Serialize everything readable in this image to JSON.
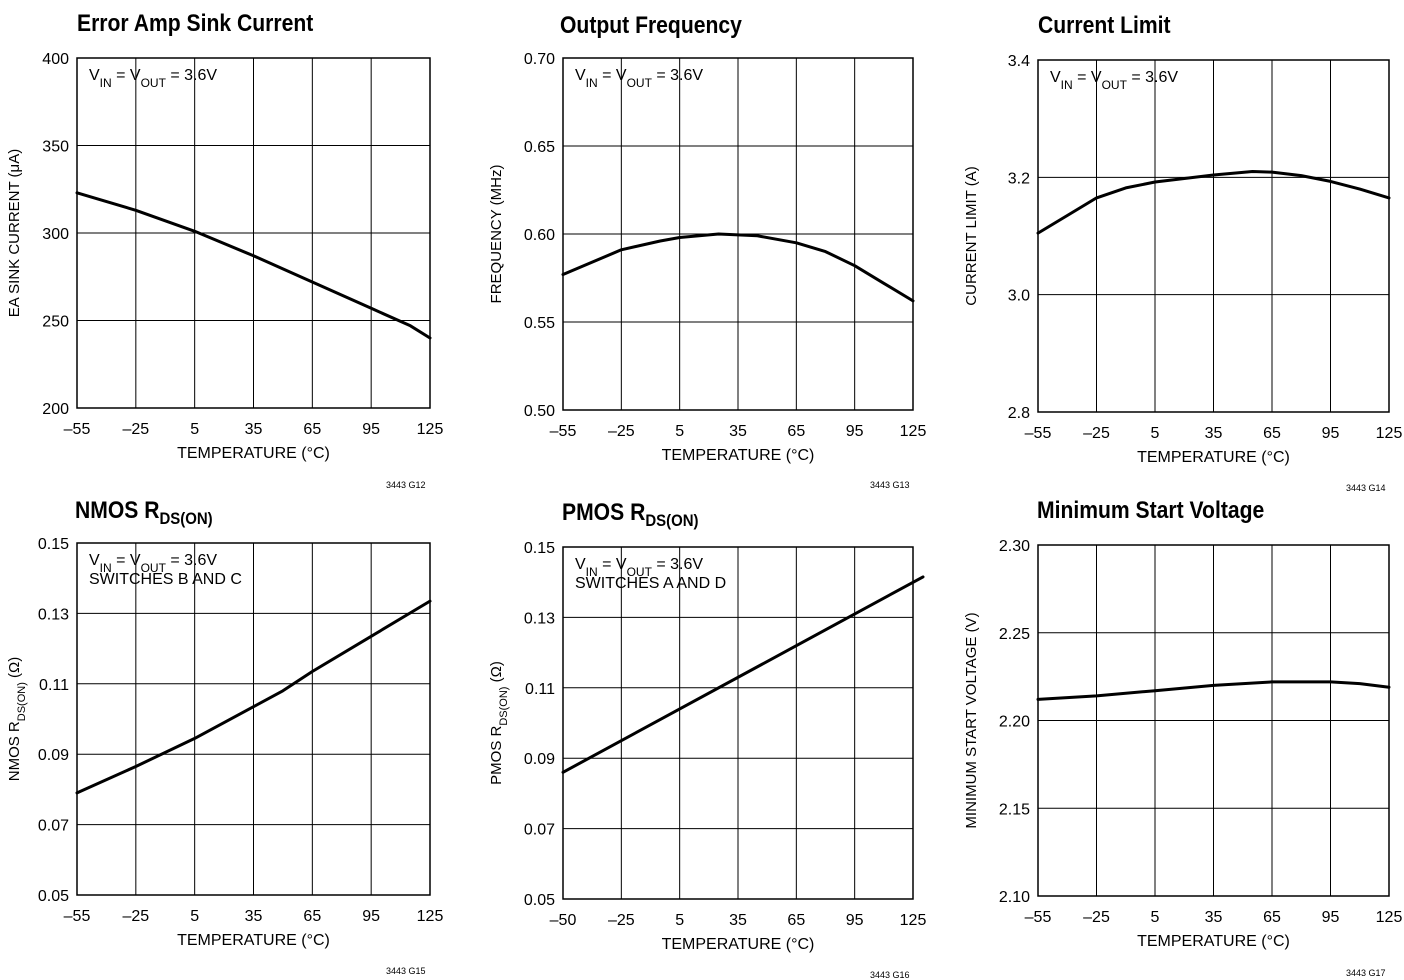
{
  "chart_data": [
    {
      "type": "line",
      "title": "Error Amp Sink Current",
      "xlabel": "TEMPERATURE (°C)",
      "ylabel": "EA SINK CURRENT (μA)",
      "annotation": [
        "VIN = VOUT = 3.6V"
      ],
      "figure_code": "3443 G12",
      "xlim": [
        -55,
        125
      ],
      "ylim": [
        200,
        400
      ],
      "xticks": [
        -55,
        -25,
        5,
        35,
        65,
        95,
        125
      ],
      "yticks": [
        200,
        250,
        300,
        350,
        400
      ],
      "xtick_labels": [
        "–55",
        "–25",
        "5",
        "35",
        "65",
        "95",
        "125"
      ],
      "ytick_labels": [
        "200",
        "250",
        "300",
        "350",
        "400"
      ],
      "grid": true,
      "series": [
        {
          "x": [
            -55,
            -25,
            5,
            35,
            65,
            95,
            115,
            125
          ],
          "y": [
            323,
            313,
            301,
            287,
            272,
            257,
            247,
            240
          ]
        }
      ]
    },
    {
      "type": "line",
      "title": "Output Frequency",
      "xlabel": "TEMPERATURE (°C)",
      "ylabel": "FREQUENCY (MHz)",
      "annotation": [
        "VIN = VOUT = 3.6V"
      ],
      "figure_code": "3443 G13",
      "xlim": [
        -55,
        125
      ],
      "ylim": [
        0.5,
        0.7
      ],
      "xticks": [
        -55,
        -25,
        5,
        35,
        65,
        95,
        125
      ],
      "yticks": [
        0.5,
        0.55,
        0.6,
        0.65,
        0.7
      ],
      "xtick_labels": [
        "–55",
        "–25",
        "5",
        "35",
        "65",
        "95",
        "125"
      ],
      "ytick_labels": [
        "0.50",
        "0.55",
        "0.60",
        "0.65",
        "0.70"
      ],
      "grid": true,
      "series": [
        {
          "x": [
            -55,
            -25,
            -5,
            5,
            25,
            45,
            65,
            80,
            95,
            110,
            125
          ],
          "y": [
            0.577,
            0.591,
            0.596,
            0.598,
            0.6,
            0.599,
            0.595,
            0.59,
            0.582,
            0.572,
            0.562
          ]
        }
      ]
    },
    {
      "type": "line",
      "title": "Current Limit",
      "xlabel": "TEMPERATURE (°C)",
      "ylabel": "CURRENT LIMIT (A)",
      "annotation": [
        "VIN = VOUT = 3.6V"
      ],
      "figure_code": "3443 G14",
      "xlim": [
        -55,
        125
      ],
      "ylim": [
        2.8,
        3.4
      ],
      "xticks": [
        -55,
        -25,
        5,
        35,
        65,
        95,
        125
      ],
      "yticks": [
        2.8,
        3.0,
        3.2,
        3.4
      ],
      "xtick_labels": [
        "–55",
        "–25",
        "5",
        "35",
        "65",
        "95",
        "125"
      ],
      "ytick_labels": [
        "2.8",
        "3.0",
        "3.2",
        "3.4"
      ],
      "grid": true,
      "series": [
        {
          "x": [
            -55,
            -40,
            -25,
            -10,
            5,
            20,
            35,
            55,
            65,
            80,
            95,
            110,
            125
          ],
          "y": [
            3.105,
            3.135,
            3.165,
            3.182,
            3.192,
            3.198,
            3.204,
            3.21,
            3.209,
            3.203,
            3.193,
            3.18,
            3.165
          ]
        }
      ]
    },
    {
      "type": "line",
      "title": "NMOS RDS(ON)",
      "xlabel": "TEMPERATURE (°C)",
      "ylabel": "NMOS RDS(ON) (Ω)",
      "annotation": [
        "VIN = VOUT = 3.6V",
        "SWITCHES B AND C"
      ],
      "figure_code": "3443 G15",
      "xlim": [
        -55,
        125
      ],
      "ylim": [
        0.05,
        0.15
      ],
      "xticks": [
        -55,
        -25,
        5,
        35,
        65,
        95,
        125
      ],
      "yticks": [
        0.05,
        0.07,
        0.09,
        0.11,
        0.13,
        0.15
      ],
      "xtick_labels": [
        "–55",
        "–25",
        "5",
        "35",
        "65",
        "95",
        "125"
      ],
      "ytick_labels": [
        "0.05",
        "0.07",
        "0.09",
        "0.11",
        "0.13",
        "0.15"
      ],
      "grid": true,
      "series": [
        {
          "x": [
            -55,
            -25,
            5,
            35,
            50,
            65,
            95,
            125
          ],
          "y": [
            0.079,
            0.0865,
            0.0945,
            0.1035,
            0.108,
            0.1135,
            0.1235,
            0.1335
          ]
        }
      ]
    },
    {
      "type": "line",
      "title": "PMOS RDS(ON)",
      "xlabel": "TEMPERATURE (°C)",
      "ylabel": "PMOS RDS(ON) (Ω)",
      "annotation": [
        "VIN = VOUT = 3.6V",
        "SWITCHES A AND D"
      ],
      "figure_code": "3443 G16",
      "xlim": [
        -50,
        125
      ],
      "ylim": [
        0.05,
        0.15
      ],
      "xticks": [
        -50,
        -25,
        5,
        35,
        65,
        95,
        125
      ],
      "xtick_positions": [
        -50,
        -20,
        10,
        40,
        70,
        100,
        130
      ],
      "yticks": [
        0.05,
        0.07,
        0.09,
        0.11,
        0.13,
        0.15
      ],
      "xtick_labels": [
        "–50",
        "–25",
        "5",
        "35",
        "65",
        "95",
        "125"
      ],
      "ytick_labels": [
        "0.05",
        "0.07",
        "0.09",
        "0.11",
        "0.13",
        "0.15"
      ],
      "grid": true,
      "series": [
        {
          "x": [
            -50,
            130
          ],
          "y": [
            0.086,
            0.1415
          ]
        }
      ]
    },
    {
      "type": "line",
      "title": "Minimum Start Voltage",
      "xlabel": "TEMPERATURE (°C)",
      "ylabel": "MINIMUM START VOLTAGE (V)",
      "annotation": [],
      "figure_code": "3443 G17",
      "xlim": [
        -55,
        125
      ],
      "ylim": [
        2.1,
        2.3
      ],
      "xticks": [
        -55,
        -25,
        5,
        35,
        65,
        95,
        125
      ],
      "yticks": [
        2.1,
        2.15,
        2.2,
        2.25,
        2.3
      ],
      "xtick_labels": [
        "–55",
        "–25",
        "5",
        "35",
        "65",
        "95",
        "125"
      ],
      "ytick_labels": [
        "2.10",
        "2.15",
        "2.20",
        "2.25",
        "2.30"
      ],
      "grid": true,
      "series": [
        {
          "x": [
            -55,
            -25,
            5,
            35,
            65,
            95,
            110,
            125
          ],
          "y": [
            2.212,
            2.214,
            2.217,
            2.22,
            2.222,
            2.222,
            2.221,
            2.219
          ]
        }
      ]
    }
  ]
}
